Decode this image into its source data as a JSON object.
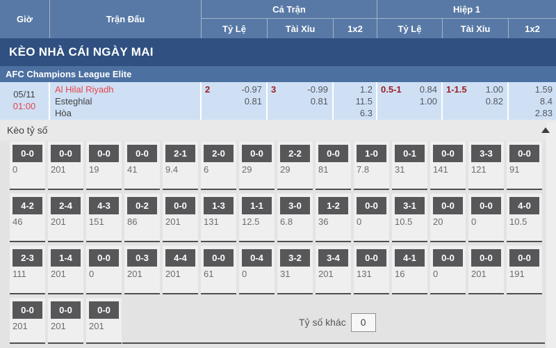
{
  "colors": {
    "page_bg": "#e3e3e3",
    "header_bg": "#5879a5",
    "banner_bg": "#2f5080",
    "league_bg": "#4c70a0",
    "match_bg": "#cfe0f5",
    "accent_red": "#e8424a",
    "handicap_red": "#9c1c22",
    "chip_bg": "#57575a",
    "section_bg": "#e9e9e9"
  },
  "header": {
    "time": "Giờ",
    "match": "Trận Đấu",
    "full_time": "Cả Trận",
    "first_half": "Hiệp 1",
    "handicap": "Tỷ Lệ",
    "over_under": "Tài Xỉu",
    "one_x_two": "1x2"
  },
  "banner": {
    "title": "KÈO NHÀ CÁI NGÀY MAI"
  },
  "league": {
    "title": "AFC Champions League Elite"
  },
  "match": {
    "date": "05/11",
    "time": "01:00",
    "home": "Al Hilal Riyadh",
    "away": "Esteghlal",
    "draw_label": "Hòa",
    "full": {
      "handicap": {
        "line": "2",
        "home": "-0.97",
        "away": "0.81"
      },
      "over_under": {
        "line": "3",
        "over": "-0.99",
        "under": "0.81"
      },
      "one_x_two": {
        "home": "1.2",
        "away": "11.5",
        "draw": "6.3"
      }
    },
    "half": {
      "handicap": {
        "line": "0.5-1",
        "home": "0.84",
        "away": "1.00"
      },
      "over_under": {
        "line": "1-1.5",
        "over": "1.00",
        "under": "0.82"
      },
      "one_x_two": {
        "home": "1.59",
        "away": "8.4",
        "draw": "2.83"
      }
    }
  },
  "score_section": {
    "title": "Kèo tỷ số",
    "other_label": "Tỷ số khác",
    "other_value": "0",
    "rows": [
      [
        [
          "0-0",
          "0"
        ],
        [
          "0-0",
          "201"
        ],
        [
          "0-0",
          "19"
        ],
        [
          "0-0",
          "41"
        ],
        [
          "2-1",
          "9.4"
        ],
        [
          "2-0",
          "6"
        ],
        [
          "0-0",
          "29"
        ],
        [
          "2-2",
          "29"
        ],
        [
          "0-0",
          "81"
        ],
        [
          "1-0",
          "7.8"
        ],
        [
          "0-1",
          "31"
        ],
        [
          "0-0",
          "141"
        ],
        [
          "3-3",
          "121"
        ],
        [
          "0-0",
          "91"
        ]
      ],
      [
        [
          "4-2",
          "46"
        ],
        [
          "2-4",
          "201"
        ],
        [
          "4-3",
          "151"
        ],
        [
          "0-2",
          "86"
        ],
        [
          "0-0",
          "201"
        ],
        [
          "1-3",
          "131"
        ],
        [
          "1-1",
          "12.5"
        ],
        [
          "3-0",
          "6.8"
        ],
        [
          "1-2",
          "36"
        ],
        [
          "0-0",
          "0"
        ],
        [
          "3-1",
          "10.5"
        ],
        [
          "0-0",
          "20"
        ],
        [
          "0-0",
          "0"
        ],
        [
          "4-0",
          "10.5"
        ]
      ],
      [
        [
          "2-3",
          "111"
        ],
        [
          "1-4",
          "201"
        ],
        [
          "0-0",
          "0"
        ],
        [
          "0-3",
          "201"
        ],
        [
          "4-4",
          "201"
        ],
        [
          "0-0",
          "61"
        ],
        [
          "0-4",
          "0"
        ],
        [
          "3-2",
          "31"
        ],
        [
          "3-4",
          "201"
        ],
        [
          "0-0",
          "131"
        ],
        [
          "4-1",
          "16"
        ],
        [
          "0-0",
          "0"
        ],
        [
          "0-0",
          "201"
        ],
        [
          "0-0",
          "191"
        ]
      ],
      [
        [
          "0-0",
          "201"
        ],
        [
          "0-0",
          "201"
        ],
        [
          "0-0",
          "201"
        ]
      ]
    ]
  }
}
